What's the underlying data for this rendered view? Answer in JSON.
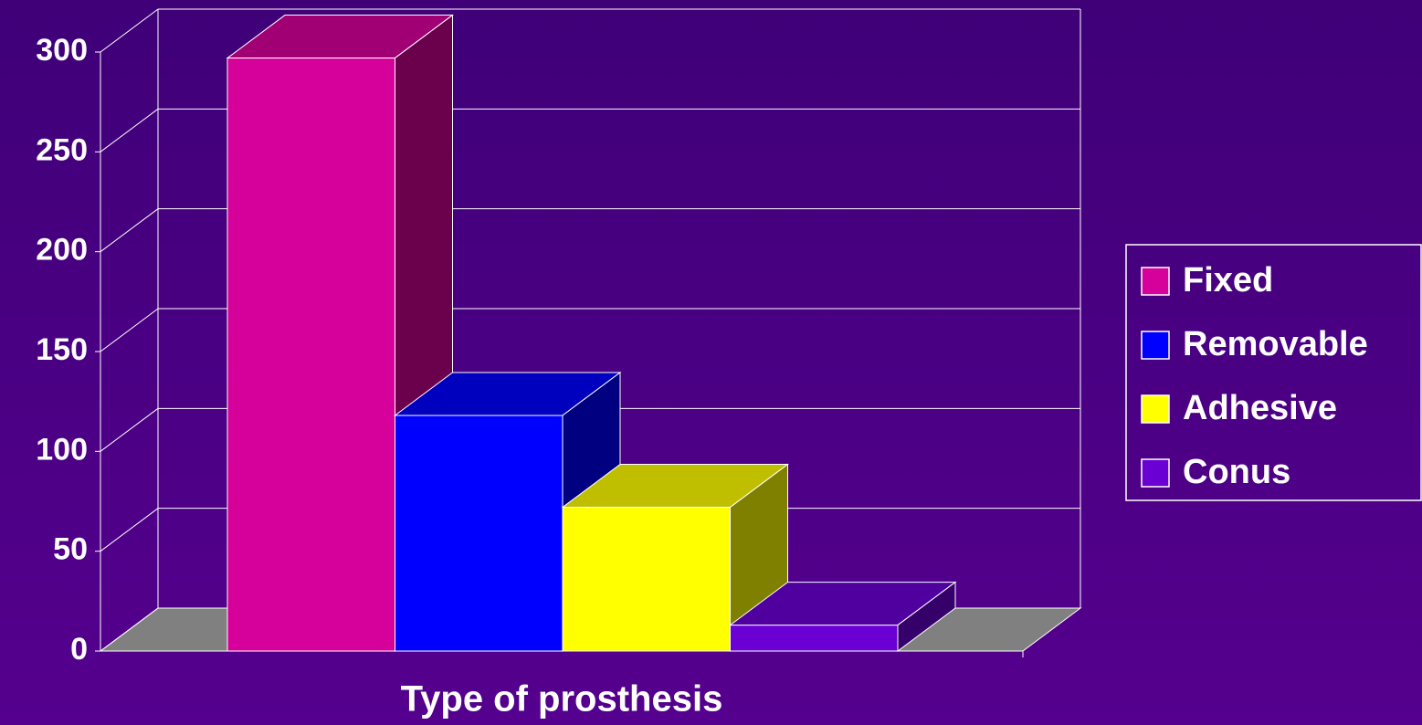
{
  "chart_data": {
    "type": "bar3d",
    "x_label": "Type of prosthesis",
    "categories": [
      null
    ],
    "series": [
      {
        "name": "Fixed",
        "color": "#d6009a",
        "values": [
          297
        ]
      },
      {
        "name": "Removable",
        "color": "#0000ff",
        "values": [
          118
        ]
      },
      {
        "name": "Adhesive",
        "color": "#ffff00",
        "values": [
          72
        ]
      },
      {
        "name": "Conus",
        "color": "#6a00d4",
        "values": [
          13
        ]
      }
    ],
    "ylim": [
      0,
      300
    ],
    "yticks": [
      0,
      50,
      100,
      150,
      200,
      250,
      300
    ],
    "grid": true,
    "legend": "right"
  }
}
